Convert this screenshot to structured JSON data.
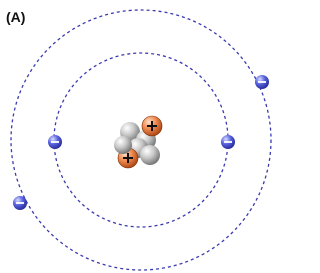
{
  "label": "(A)"
}
